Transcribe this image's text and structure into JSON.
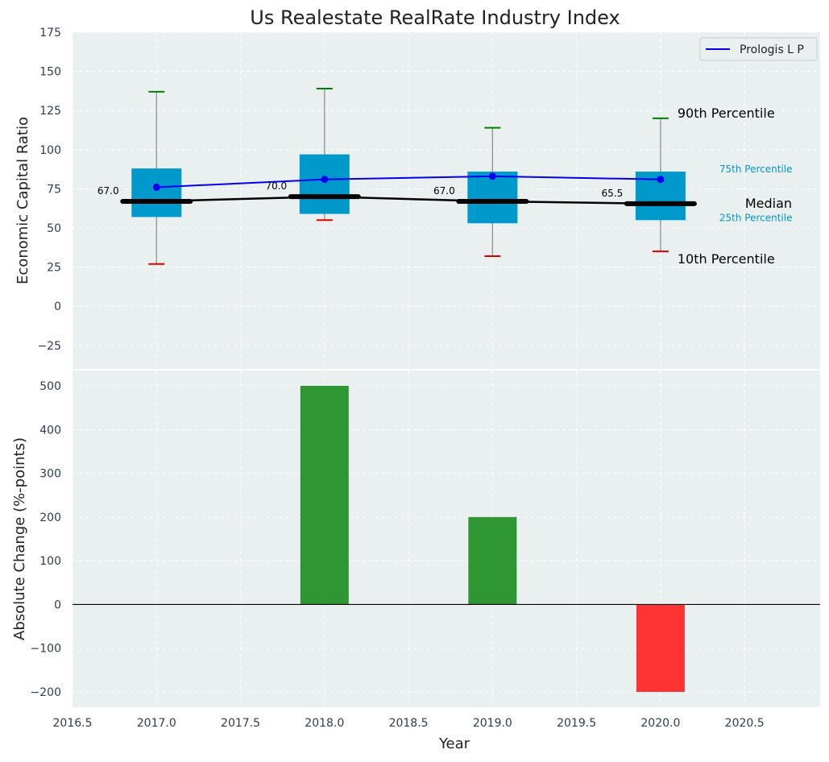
{
  "title": "Us Realestate RealRate Industry Index",
  "colors": {
    "panel_bg": "#eaeff0",
    "grid": "#ffffff",
    "box": "#0099cc",
    "median": "#000000",
    "company": "#0000ee",
    "p90": "#008000",
    "p10": "#dd0000",
    "bar_pos": "#2e9632",
    "bar_neg": "#ff3333",
    "tick_text": "#2b3e50"
  },
  "chart_data": [
    {
      "type": "box",
      "ylabel": "Economic Capital Ratio",
      "ylim": [
        -40,
        175
      ],
      "yticks": [
        -25,
        0,
        25,
        50,
        75,
        100,
        125,
        150,
        175
      ],
      "ytick_labels": [
        "−25",
        "0",
        "25",
        "50",
        "75",
        "100",
        "125",
        "150",
        "175"
      ],
      "x": [
        2017,
        2018,
        2019,
        2020
      ],
      "p10": [
        27,
        55,
        32,
        35
      ],
      "p25": [
        57,
        59,
        53,
        55
      ],
      "median": [
        67,
        70,
        67,
        65.5
      ],
      "p75": [
        88,
        97,
        86,
        86
      ],
      "p90": [
        137,
        139,
        114,
        120
      ],
      "median_labels": [
        "67.0",
        "70.0",
        "67.0",
        "65.5"
      ],
      "series": [
        {
          "name": "Prologis L P",
          "values": [
            76,
            81,
            83,
            81
          ]
        }
      ],
      "annotations": {
        "p90": "90th Percentile",
        "p75": "75th Percentile",
        "median": "Median",
        "p25": "25th Percentile",
        "p10": "10th Percentile"
      },
      "legend": "top-right",
      "grid": true
    },
    {
      "type": "bar",
      "xlabel": "Year",
      "ylabel": "Absolute Change (%-points)",
      "x": [
        2018,
        2019,
        2020
      ],
      "values": [
        500,
        200,
        -200
      ],
      "ylim": [
        -235,
        535
      ],
      "yticks": [
        -200,
        -100,
        0,
        100,
        200,
        300,
        400,
        500
      ],
      "ytick_labels": [
        "−200",
        "−100",
        "0",
        "100",
        "200",
        "300",
        "400",
        "500"
      ],
      "xlim": [
        2016.5,
        2020.95
      ],
      "xticks": [
        2016.5,
        2017.0,
        2017.5,
        2018.0,
        2018.5,
        2019.0,
        2019.5,
        2020.0,
        2020.5
      ],
      "xtick_labels": [
        "2016.5",
        "2017.0",
        "2017.5",
        "2018.0",
        "2018.5",
        "2019.0",
        "2019.5",
        "2020.0",
        "2020.5"
      ],
      "grid": true
    }
  ]
}
